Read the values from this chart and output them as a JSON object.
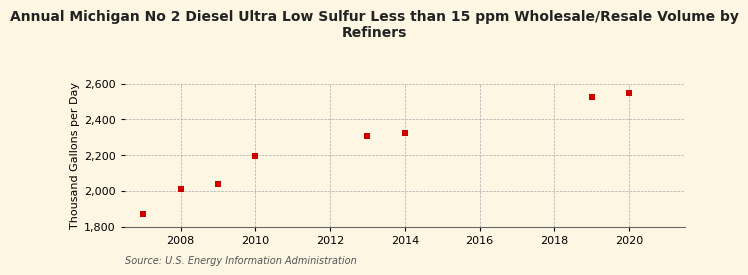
{
  "title_line1": "Annual Michigan No 2 Diesel Ultra Low Sulfur Less than 15 ppm Wholesale/Resale Volume by",
  "title_line2": "Refiners",
  "ylabel": "Thousand Gallons per Day",
  "source": "Source: U.S. Energy Information Administration",
  "background_color": "#fdf6e3",
  "x_data": [
    2007,
    2008,
    2009,
    2010,
    2013,
    2014,
    2019,
    2020
  ],
  "y_data": [
    1870,
    2010,
    2035,
    2195,
    2305,
    2325,
    2525,
    2545
  ],
  "marker_color": "#cc0000",
  "marker": "s",
  "marker_size": 5,
  "xlim": [
    2006.5,
    2021.5
  ],
  "ylim": [
    1800,
    2600
  ],
  "yticks": [
    1800,
    2000,
    2200,
    2400,
    2600
  ],
  "xticks": [
    2008,
    2010,
    2012,
    2014,
    2016,
    2018,
    2020
  ],
  "grid_color": "#aaaaaa",
  "title_fontsize": 10,
  "label_fontsize": 8,
  "tick_fontsize": 8,
  "source_fontsize": 7
}
